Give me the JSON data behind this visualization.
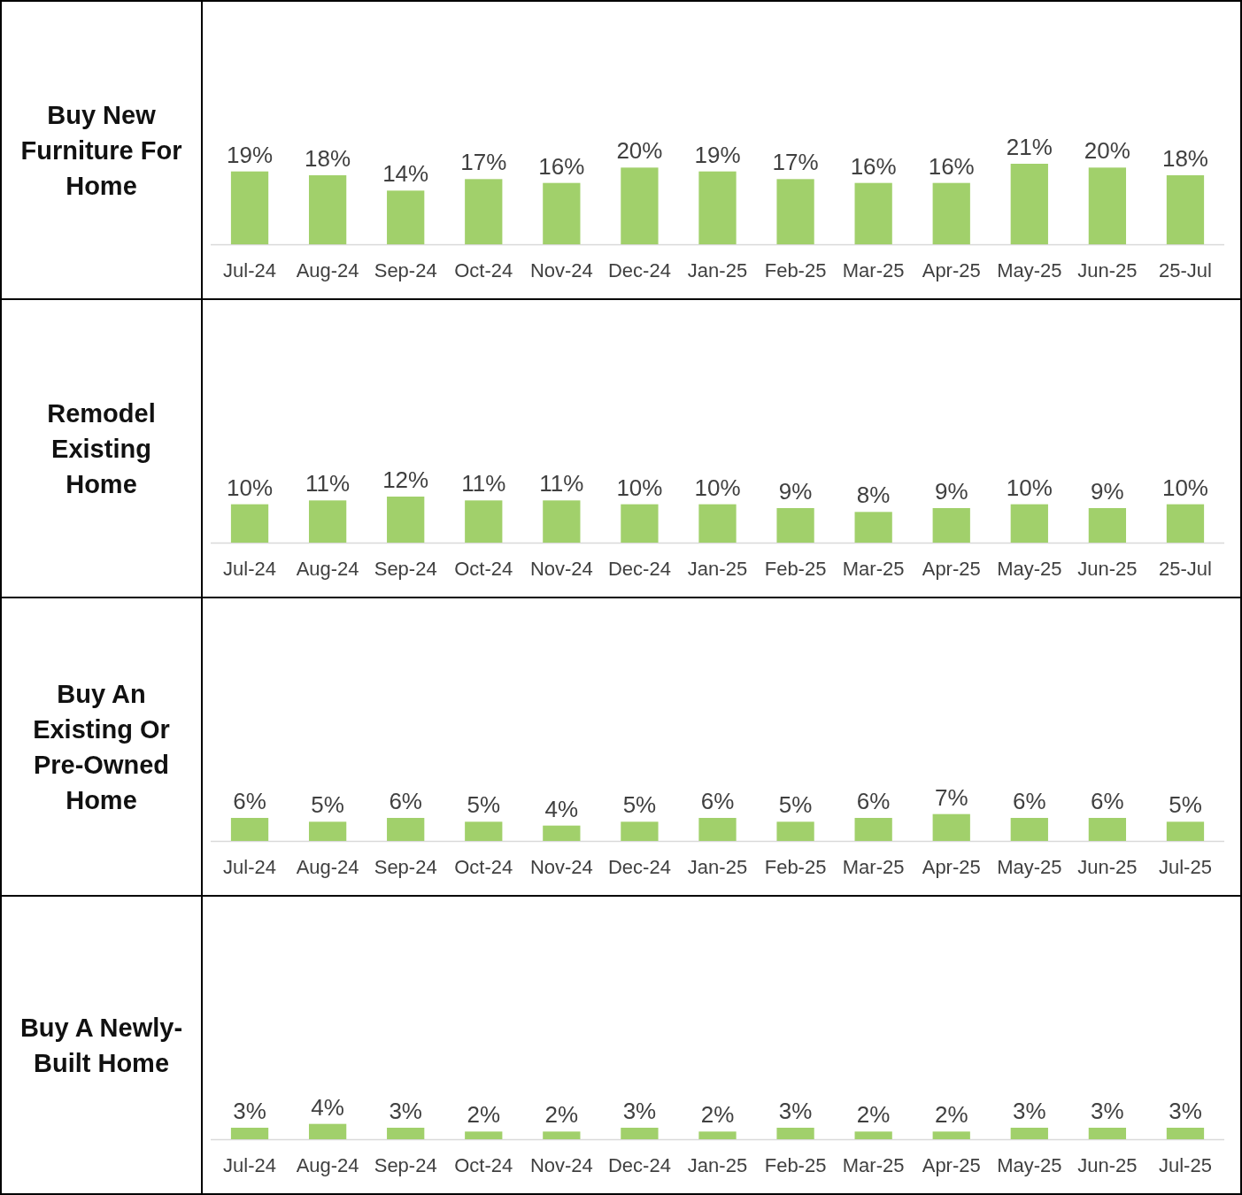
{
  "chart_data": [
    {
      "type": "bar",
      "title": "Buy New Furniture For Home",
      "categories": [
        "Jul-24",
        "Aug-24",
        "Sep-24",
        "Oct-24",
        "Nov-24",
        "Dec-24",
        "Jan-25",
        "Feb-25",
        "Mar-25",
        "Apr-25",
        "May-25",
        "Jun-25",
        "25-Jul"
      ],
      "values": [
        19,
        18,
        14,
        17,
        16,
        20,
        19,
        17,
        16,
        16,
        21,
        20,
        18
      ],
      "value_labels": [
        "19%",
        "18%",
        "14%",
        "17%",
        "16%",
        "20%",
        "19%",
        "17%",
        "16%",
        "16%",
        "21%",
        "20%",
        "18%"
      ],
      "color": "#a1d06b"
    },
    {
      "type": "bar",
      "title": "Remodel Existing Home",
      "categories": [
        "Jul-24",
        "Aug-24",
        "Sep-24",
        "Oct-24",
        "Nov-24",
        "Dec-24",
        "Jan-25",
        "Feb-25",
        "Mar-25",
        "Apr-25",
        "May-25",
        "Jun-25",
        "25-Jul"
      ],
      "values": [
        10,
        11,
        12,
        11,
        11,
        10,
        10,
        9,
        8,
        9,
        10,
        9,
        10
      ],
      "value_labels": [
        "10%",
        "11%",
        "12%",
        "11%",
        "11%",
        "10%",
        "10%",
        "9%",
        "8%",
        "9%",
        "10%",
        "9%",
        "10%"
      ],
      "color": "#a1d06b"
    },
    {
      "type": "bar",
      "title": "Buy An Existing Or Pre-Owned Home",
      "categories": [
        "Jul-24",
        "Aug-24",
        "Sep-24",
        "Oct-24",
        "Nov-24",
        "Dec-24",
        "Jan-25",
        "Feb-25",
        "Mar-25",
        "Apr-25",
        "May-25",
        "Jun-25",
        "Jul-25"
      ],
      "values": [
        6,
        5,
        6,
        5,
        4,
        5,
        6,
        5,
        6,
        7,
        6,
        6,
        5
      ],
      "value_labels": [
        "6%",
        "5%",
        "6%",
        "5%",
        "4%",
        "5%",
        "6%",
        "5%",
        "6%",
        "7%",
        "6%",
        "6%",
        "5%"
      ],
      "color": "#a1d06b"
    },
    {
      "type": "bar",
      "title": "Buy A Newly-Built Home",
      "categories": [
        "Jul-24",
        "Aug-24",
        "Sep-24",
        "Oct-24",
        "Nov-24",
        "Dec-24",
        "Jan-25",
        "Feb-25",
        "Mar-25",
        "Apr-25",
        "May-25",
        "Jun-25",
        "Jul-25"
      ],
      "values": [
        3,
        4,
        3,
        2,
        2,
        3,
        2,
        3,
        2,
        2,
        3,
        3,
        3
      ],
      "value_labels": [
        "3%",
        "4%",
        "3%",
        "2%",
        "2%",
        "3%",
        "2%",
        "3%",
        "2%",
        "2%",
        "3%",
        "3%",
        "3%"
      ],
      "color": "#a1d06b"
    }
  ]
}
